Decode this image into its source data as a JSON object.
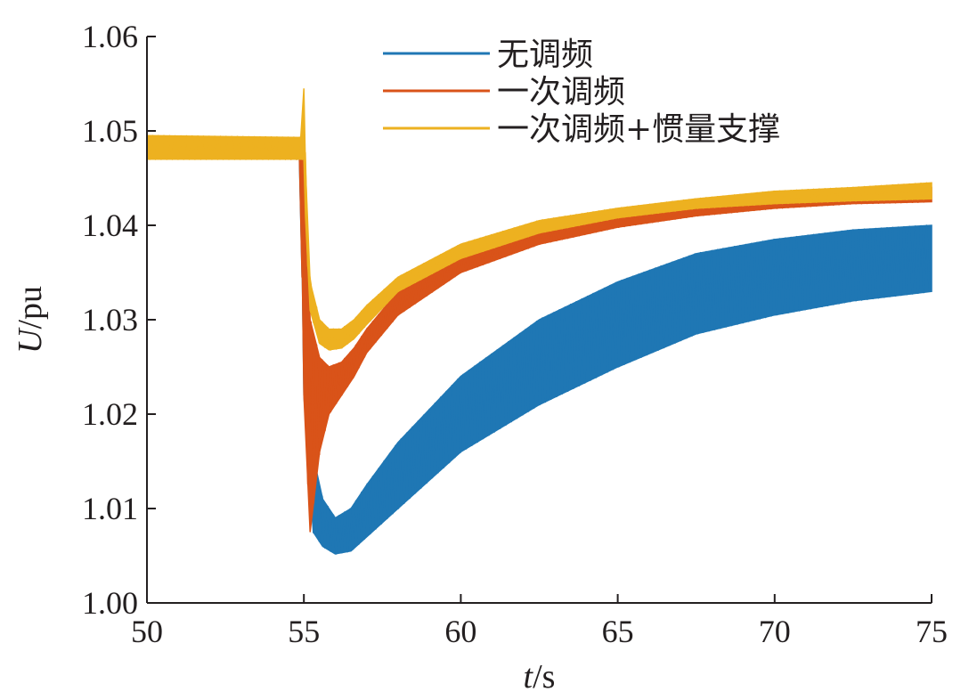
{
  "chart_data": {
    "type": "line",
    "xlabel_italic": "t",
    "xlabel_unit": "/s",
    "ylabel_italic": "U",
    "ylabel_unit": "/pu",
    "xlim": [
      50,
      75
    ],
    "ylim": [
      1.0,
      1.06
    ],
    "x_ticks": [
      "50",
      "55",
      "60",
      "65",
      "70",
      "75"
    ],
    "y_ticks": [
      "1.00",
      "1.01",
      "1.02",
      "1.03",
      "1.04",
      "1.05",
      "1.06"
    ],
    "grid": false,
    "legend_position": "top-right",
    "series": [
      {
        "name": "无调频",
        "color": "#1f77b4",
        "x": [
          50,
          54.9,
          55.0,
          55.3,
          55.6,
          56.0,
          56.5,
          57.0,
          58.0,
          60.0,
          62.5,
          65.0,
          67.5,
          70.0,
          72.5,
          75.0
        ],
        "upper": [
          1.0478,
          1.0474,
          1.046,
          1.0155,
          1.011,
          1.009,
          1.01,
          1.0125,
          1.017,
          1.024,
          1.03,
          1.034,
          1.037,
          1.0385,
          1.0395,
          1.04
        ],
        "lower": [
          1.0474,
          1.047,
          1.022,
          1.0075,
          1.006,
          1.0052,
          1.0055,
          1.007,
          1.01,
          1.016,
          1.021,
          1.025,
          1.0285,
          1.0305,
          1.032,
          1.033
        ]
      },
      {
        "name": "一次调频",
        "color": "#d95319",
        "x": [
          50,
          54.9,
          55.0,
          55.2,
          55.5,
          55.8,
          56.2,
          56.6,
          57.0,
          58.0,
          60.0,
          62.5,
          65.0,
          67.5,
          70.0,
          72.5,
          75.0
        ],
        "upper": [
          1.0478,
          1.0476,
          1.047,
          1.03,
          1.026,
          1.025,
          1.0255,
          1.027,
          1.029,
          1.033,
          1.037,
          1.0395,
          1.041,
          1.042,
          1.0428,
          1.0434,
          1.044
        ],
        "lower": [
          1.0472,
          1.047,
          1.022,
          1.0075,
          1.016,
          1.02,
          1.022,
          1.024,
          1.0265,
          1.0305,
          1.035,
          1.038,
          1.0398,
          1.041,
          1.0418,
          1.0423,
          1.0425
        ]
      },
      {
        "name": "一次调频+惯量支撑",
        "color": "#edb120",
        "x": [
          50,
          54.9,
          55.0,
          55.05,
          55.2,
          55.5,
          55.8,
          56.2,
          56.6,
          57.0,
          58.0,
          60.0,
          62.5,
          65.0,
          67.5,
          70.0,
          72.5,
          75.0
        ],
        "upper": [
          1.0495,
          1.0493,
          1.0545,
          1.046,
          1.034,
          1.03,
          1.029,
          1.029,
          1.03,
          1.0315,
          1.0345,
          1.038,
          1.0405,
          1.0418,
          1.0428,
          1.0436,
          1.044,
          1.0445
        ],
        "lower": [
          1.047,
          1.047,
          1.047,
          1.041,
          1.031,
          1.0275,
          1.0268,
          1.027,
          1.028,
          1.0295,
          1.033,
          1.0365,
          1.0392,
          1.0408,
          1.0418,
          1.0423,
          1.0426,
          1.0428
        ]
      }
    ]
  }
}
